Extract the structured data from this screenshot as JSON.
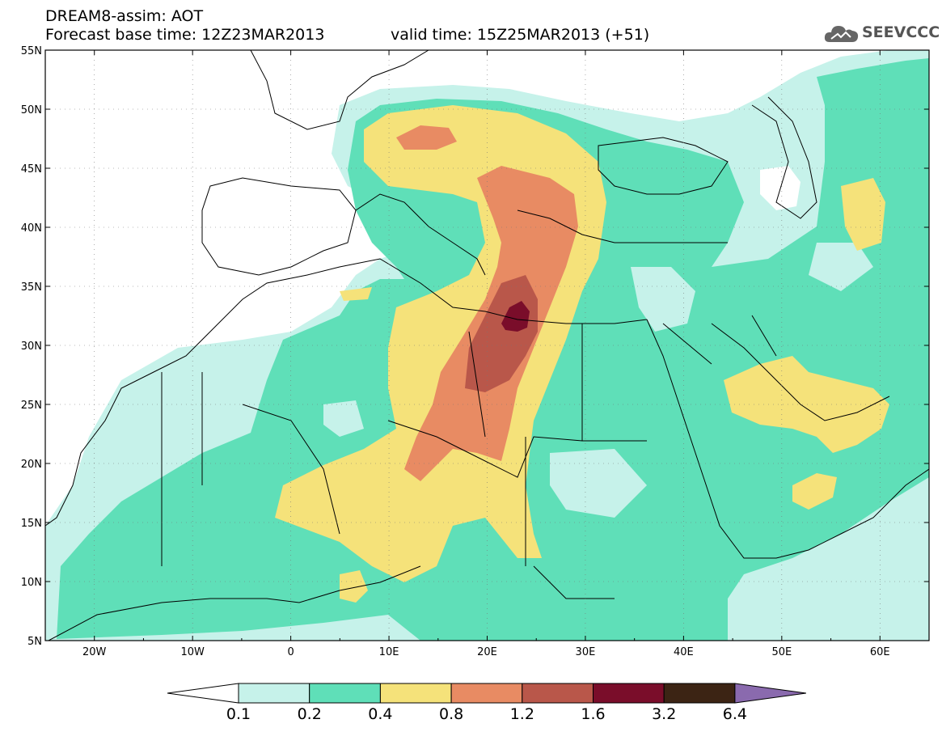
{
  "header": {
    "title": "DREAM8-assim: AOT",
    "base_time": "Forecast base time: 12Z23MAR2013",
    "valid_time": "valid time: 15Z25MAR2013 (+51)"
  },
  "logo": {
    "text": "SEEVCCC",
    "icon": "cloud-icon",
    "color": "#666666"
  },
  "map": {
    "lat_labels": [
      "55N",
      "50N",
      "45N",
      "40N",
      "35N",
      "30N",
      "25N",
      "20N",
      "15N",
      "10N",
      "5N"
    ],
    "lon_labels": [
      "20W",
      "10W",
      "0",
      "10E",
      "20E",
      "30E",
      "40E",
      "50E",
      "60E"
    ],
    "extent": {
      "lon_min": -25,
      "lon_max": 65,
      "lat_min": 5,
      "lat_max": 55
    }
  },
  "colorbar": {
    "levels": [
      "0.1",
      "0.2",
      "0.4",
      "0.8",
      "1.2",
      "1.6",
      "3.2",
      "6.4"
    ],
    "colors": [
      "#ffffff",
      "#c6f2ea",
      "#5fdfb8",
      "#f5e27a",
      "#e88b63",
      "#b9574a",
      "#7a0d2a",
      "#3c2414",
      "#8a6aae"
    ]
  },
  "palette": {
    "c01": "#c6f2ea",
    "c02": "#5fdfb8",
    "c04": "#f5e27a",
    "c08": "#e88b63",
    "c12": "#b9574a",
    "c16": "#7a0d2a"
  }
}
